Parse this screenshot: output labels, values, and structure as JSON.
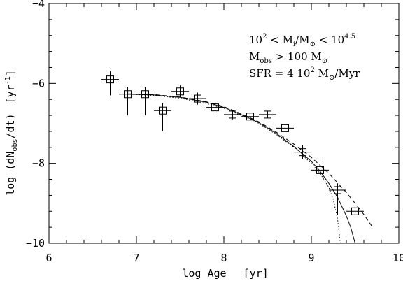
{
  "chart_data": {
    "type": "scatter",
    "xlabel_parts": {
      "main": "log Age",
      "unit": "[yr]"
    },
    "ylabel_parts": {
      "pre": "log (dN",
      "sub": "obs",
      "post": "/dt)",
      "unit_pre": "[yr",
      "unit_sup": "-1",
      "unit_post": "]"
    },
    "xlim": [
      6,
      10
    ],
    "ylim": [
      -10,
      -4
    ],
    "x_ticks": [
      6,
      7,
      8,
      9,
      10
    ],
    "y_ticks": [
      -10,
      -8,
      -6,
      -4
    ],
    "x_tick_labels": [
      "6",
      "7",
      "8",
      "9",
      "10"
    ],
    "y_tick_labels": [
      "−10",
      "−8",
      "−6",
      "−4"
    ],
    "annotations": [
      {
        "pre": "10",
        "sup1": "2",
        "mid": " < M",
        "sub1": "i",
        "mid2": "/M",
        "sub2": "⊙",
        "mid3": " < 10",
        "sup2": "4.5"
      },
      {
        "pre": "M",
        "sub1": "obs",
        "mid": " > 100 M",
        "sub2": "⊙"
      },
      {
        "pre": "SFR = 4 10",
        "sup1": "2",
        "mid": " M",
        "sub1": "⊙",
        "mid2": "/Myr"
      }
    ],
    "points": [
      {
        "x": 6.7,
        "y": -5.9,
        "xerr": 0.1,
        "ylo": -6.3,
        "yhi": -5.7
      },
      {
        "x": 6.9,
        "y": -6.27,
        "xerr": 0.1,
        "ylo": -6.8,
        "yhi": -6.1
      },
      {
        "x": 7.1,
        "y": -6.27,
        "xerr": 0.1,
        "ylo": -6.8,
        "yhi": -6.1
      },
      {
        "x": 7.3,
        "y": -6.68,
        "xerr": 0.1,
        "ylo": -7.2,
        "yhi": -6.5
      },
      {
        "x": 7.5,
        "y": -6.2,
        "xerr": 0.1,
        "ylo": -6.35,
        "yhi": -6.05
      },
      {
        "x": 7.7,
        "y": -6.38,
        "xerr": 0.1,
        "ylo": -6.53,
        "yhi": -6.23
      },
      {
        "x": 7.9,
        "y": -6.6,
        "xerr": 0.1,
        "ylo": -6.72,
        "yhi": -6.48
      },
      {
        "x": 8.1,
        "y": -6.78,
        "xerr": 0.1,
        "ylo": -6.9,
        "yhi": -6.66
      },
      {
        "x": 8.3,
        "y": -6.83,
        "xerr": 0.1,
        "ylo": -6.93,
        "yhi": -6.73
      },
      {
        "x": 8.5,
        "y": -6.78,
        "xerr": 0.1,
        "ylo": -6.86,
        "yhi": -6.7
      },
      {
        "x": 8.7,
        "y": -7.12,
        "xerr": 0.1,
        "ylo": -7.2,
        "yhi": -7.04
      },
      {
        "x": 8.9,
        "y": -7.72,
        "xerr": 0.1,
        "ylo": -7.9,
        "yhi": -7.55
      },
      {
        "x": 9.1,
        "y": -8.17,
        "xerr": 0.1,
        "ylo": -8.5,
        "yhi": -7.95
      },
      {
        "x": 9.3,
        "y": -8.67,
        "xerr": 0.1,
        "ylo": -9.3,
        "yhi": -8.5
      },
      {
        "x": 9.5,
        "y": -9.2,
        "xerr": 0.1,
        "ylo": -10.0,
        "yhi": -9.0
      }
    ],
    "series": [
      {
        "style": "solid",
        "points": [
          [
            6.9,
            -6.27
          ],
          [
            7.2,
            -6.29
          ],
          [
            7.5,
            -6.35
          ],
          [
            7.8,
            -6.47
          ],
          [
            8.0,
            -6.6
          ],
          [
            8.2,
            -6.78
          ],
          [
            8.4,
            -6.98
          ],
          [
            8.6,
            -7.25
          ],
          [
            8.8,
            -7.58
          ],
          [
            9.0,
            -7.95
          ],
          [
            9.1,
            -8.2
          ],
          [
            9.2,
            -8.5
          ],
          [
            9.3,
            -8.85
          ],
          [
            9.4,
            -9.32
          ],
          [
            9.45,
            -9.6
          ],
          [
            9.5,
            -10.0
          ]
        ]
      },
      {
        "style": "dashed",
        "points": [
          [
            6.9,
            -6.26
          ],
          [
            7.2,
            -6.28
          ],
          [
            7.5,
            -6.34
          ],
          [
            7.8,
            -6.46
          ],
          [
            8.0,
            -6.58
          ],
          [
            8.2,
            -6.76
          ],
          [
            8.4,
            -6.96
          ],
          [
            8.6,
            -7.22
          ],
          [
            8.8,
            -7.52
          ],
          [
            9.0,
            -7.85
          ],
          [
            9.2,
            -8.25
          ],
          [
            9.4,
            -8.73
          ],
          [
            9.5,
            -9.0
          ],
          [
            9.6,
            -9.28
          ],
          [
            9.7,
            -9.6
          ]
        ]
      },
      {
        "style": "dotted",
        "points": [
          [
            6.9,
            -6.27
          ],
          [
            7.2,
            -6.3
          ],
          [
            7.5,
            -6.37
          ],
          [
            7.8,
            -6.5
          ],
          [
            8.0,
            -6.63
          ],
          [
            8.2,
            -6.8
          ],
          [
            8.4,
            -7.0
          ],
          [
            8.6,
            -7.28
          ],
          [
            8.8,
            -7.6
          ],
          [
            9.0,
            -8.0
          ],
          [
            9.1,
            -8.25
          ],
          [
            9.2,
            -8.6
          ],
          [
            9.25,
            -8.9
          ],
          [
            9.3,
            -9.4
          ],
          [
            9.33,
            -10.0
          ]
        ]
      }
    ]
  }
}
